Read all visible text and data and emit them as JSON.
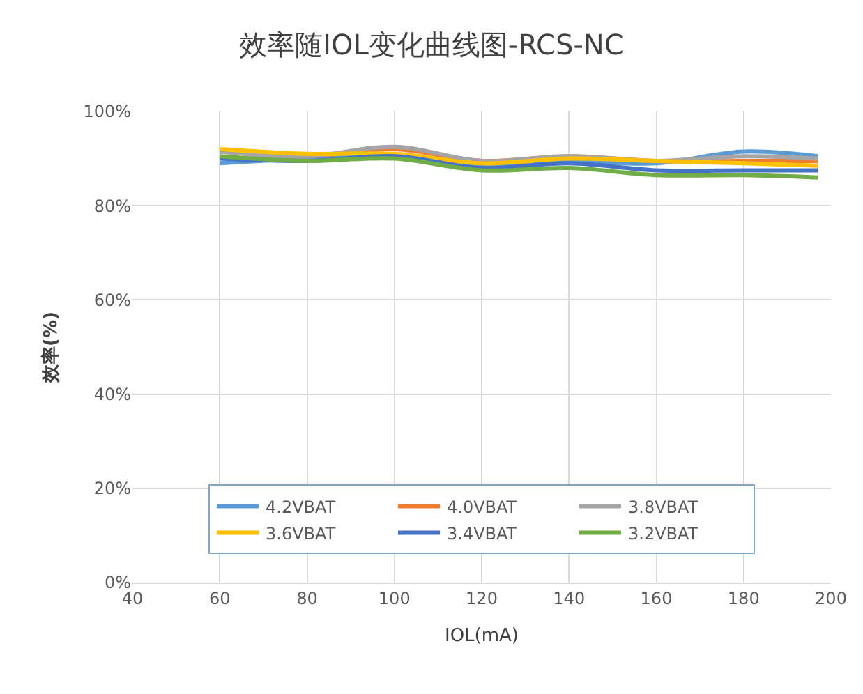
{
  "chart_data": {
    "type": "line",
    "title": "效率随IOL变化曲线图-RCS-NC",
    "xlabel": "IOL(mA)",
    "ylabel": "效率(%)",
    "x": [
      60,
      80,
      100,
      120,
      140,
      160,
      180,
      197
    ],
    "series": [
      {
        "name": "4.2VBAT",
        "color": "#5b9bd5",
        "values": [
          89,
          90,
          90.5,
          88.5,
          89.5,
          89,
          91.5,
          90.5
        ]
      },
      {
        "name": "4.0VBAT",
        "color": "#ed7d31",
        "values": [
          91.5,
          90.5,
          92,
          89.5,
          90.5,
          89.5,
          89.5,
          89.5
        ]
      },
      {
        "name": "3.8VBAT",
        "color": "#a5a5a5",
        "values": [
          91.5,
          90.5,
          92.5,
          89.5,
          90.5,
          89.5,
          90.5,
          90
        ]
      },
      {
        "name": "3.6VBAT",
        "color": "#ffc000",
        "values": [
          92,
          91,
          91,
          89,
          90,
          89.5,
          89,
          88.5
        ]
      },
      {
        "name": "3.4VBAT",
        "color": "#4472c4",
        "values": [
          90,
          89.5,
          90.5,
          88,
          89,
          87.5,
          87.5,
          87.5
        ]
      },
      {
        "name": "3.2VBAT",
        "color": "#70ad47",
        "values": [
          90.5,
          89.5,
          90,
          87.5,
          88,
          86.5,
          86.5,
          86
        ]
      }
    ],
    "xlim": [
      40,
      200
    ],
    "xticks": [
      40,
      60,
      80,
      100,
      120,
      140,
      160,
      180,
      200
    ],
    "ylim": [
      0,
      100
    ],
    "yticks": [
      {
        "value": 0,
        "label": "0%"
      },
      {
        "value": 20,
        "label": "20%"
      },
      {
        "value": 40,
        "label": "40%"
      },
      {
        "value": 60,
        "label": "60%"
      },
      {
        "value": 80,
        "label": "80%"
      },
      {
        "value": 100,
        "label": "100%"
      }
    ],
    "grid": true,
    "legend": "bottom",
    "marker": "none",
    "line_style": "solid"
  }
}
